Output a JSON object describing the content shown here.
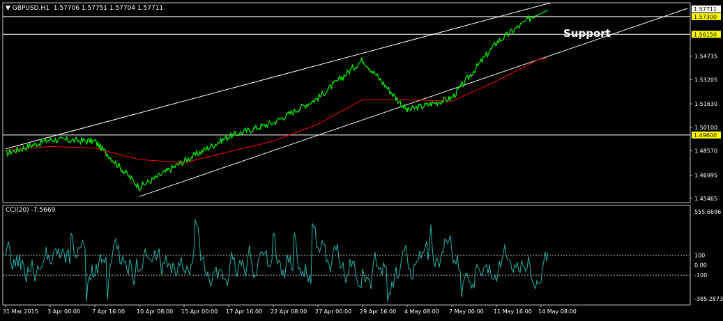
{
  "header": {
    "title": "GBPUSD,H1",
    "ohlc": "1.57706 1.57751 1.57704 1.57711"
  },
  "annotation": {
    "support_label": "Support"
  },
  "cci": {
    "title": "CCI(20) -7.5669",
    "levels": [
      "555.6696",
      "100",
      "0.00",
      "-100",
      "-385.2873"
    ]
  },
  "colors": {
    "background": "#000000",
    "price": "#00ff00",
    "ma": "#ff0000",
    "cci": "#20b2aa",
    "lines": "#ffffff",
    "highlight_label": "#ffff00"
  },
  "chart_data": {
    "type": "line",
    "symbol": "GBPUSD",
    "timeframe": "H1",
    "x_ticks": [
      "31 Mar 2015",
      "3 Apr 00:00",
      "7 Apr 16:00",
      "10 Apr 08:00",
      "15 Apr 00:00",
      "17 Apr 16:00",
      "22 Apr 08:00",
      "27 Apr 00:00",
      "29 Apr 16:00",
      "4 May 08:00",
      "7 May 00:00",
      "11 May 16:00",
      "14 May 08:00"
    ],
    "y_ticks": [
      "1.54735",
      "1.53205",
      "1.51630",
      "1.50100",
      "1.48570",
      "1.46995",
      "1.45465"
    ],
    "ylim": [
      1.452,
      1.582
    ],
    "horizontal_levels": [
      {
        "value": 1.573,
        "label": "1.57300",
        "highlight": true
      },
      {
        "value": 1.5615,
        "label": "1.56150",
        "highlight": true
      },
      {
        "value": 1.496,
        "label": "1.49600",
        "highlight": true
      }
    ],
    "current_price": {
      "value": 1.57711,
      "label": "1.57711"
    },
    "channel": {
      "upper": {
        "start": [
          "31 Mar 2015",
          1.487
        ],
        "end": [
          "14 May 08:00",
          1.582
        ]
      },
      "lower": {
        "start": [
          "10 Apr 08:00",
          1.456
        ],
        "end": [
          "14 May 08:00",
          1.562
        ]
      }
    },
    "series": [
      {
        "role": "price",
        "values": [
          [
            "31 Mar 2015",
            1.484
          ],
          [
            "3 Apr 00:00",
            1.493
          ],
          [
            "7 Apr 16:00",
            1.492
          ],
          [
            "10 Apr 08:00",
            1.462
          ],
          [
            "15 Apr 00:00",
            1.479
          ],
          [
            "17 Apr 16:00",
            1.495
          ],
          [
            "22 Apr 08:00",
            1.504
          ],
          [
            "27 Apr 00:00",
            1.52
          ],
          [
            "29 Apr 16:00",
            1.545
          ],
          [
            "4 May 08:00",
            1.512
          ],
          [
            "7 May 00:00",
            1.52
          ],
          [
            "11 May 16:00",
            1.556
          ],
          [
            "14 May 08:00",
            1.5771
          ]
        ]
      },
      {
        "role": "moving-average",
        "values": [
          [
            "31 Mar 2015",
            1.486
          ],
          [
            "3 Apr 00:00",
            1.4885
          ],
          [
            "7 Apr 16:00",
            1.4875
          ],
          [
            "10 Apr 08:00",
            1.48
          ],
          [
            "15 Apr 00:00",
            1.478
          ],
          [
            "17 Apr 16:00",
            1.485
          ],
          [
            "22 Apr 08:00",
            1.492
          ],
          [
            "27 Apr 00:00",
            1.503
          ],
          [
            "29 Apr 16:00",
            1.519
          ],
          [
            "4 May 08:00",
            1.519
          ],
          [
            "7 May 00:00",
            1.518
          ],
          [
            "11 May 16:00",
            1.531
          ],
          [
            "14 May 08:00",
            1.546
          ]
        ]
      }
    ],
    "cci_ylim": [
      -385.2873,
      555.6696
    ],
    "cci_levels": [
      100,
      0,
      -100
    ]
  }
}
